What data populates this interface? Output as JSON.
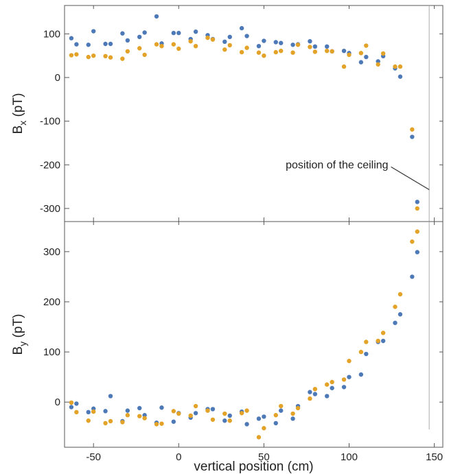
{
  "chart_data": {
    "type": "scatter",
    "xlabel": "vertical position (cm)",
    "xlim": [
      -67,
      155
    ],
    "xticks": [
      -50,
      0,
      50,
      100,
      150
    ],
    "colors": {
      "series_a": "#4e79b7",
      "series_b": "#e3a228"
    },
    "marker_line_x": 147,
    "panels": [
      {
        "id": "bx",
        "ylabel_main": "B",
        "ylabel_sub": "x",
        "ylabel_unit": " (pT)",
        "ylim": [
          -330,
          165
        ],
        "yticks": [
          100,
          0,
          -100,
          -200,
          -300
        ],
        "annotation": {
          "text": "position of the ceiling",
          "x": 123,
          "y": -200,
          "arrow_to": [
            147,
            -257
          ]
        },
        "series": [
          {
            "color": "#4e79b7",
            "points": [
              [
                -63,
                90
              ],
              [
                -60,
                76
              ],
              [
                -53,
                75
              ],
              [
                -50,
                106
              ],
              [
                -43,
                77
              ],
              [
                -40,
                77
              ],
              [
                -33,
                101
              ],
              [
                -30,
                85
              ],
              [
                -23,
                93
              ],
              [
                -20,
                103
              ],
              [
                -13,
                140
              ],
              [
                -10,
                78
              ],
              [
                -3,
                102
              ],
              [
                0,
                102
              ],
              [
                7,
                88
              ],
              [
                10,
                105
              ],
              [
                17,
                97
              ],
              [
                20,
                88
              ],
              [
                27,
                82
              ],
              [
                30,
                93
              ],
              [
                37,
                113
              ],
              [
                40,
                95
              ],
              [
                47,
                72
              ],
              [
                50,
                84
              ],
              [
                57,
                81
              ],
              [
                60,
                79
              ],
              [
                67,
                75
              ],
              [
                70,
                76
              ],
              [
                77,
                83
              ],
              [
                80,
                71
              ],
              [
                87,
                71
              ],
              [
                90,
                60
              ],
              [
                97,
                61
              ],
              [
                100,
                56
              ],
              [
                107,
                35
              ],
              [
                110,
                47
              ],
              [
                117,
                37
              ],
              [
                120,
                49
              ],
              [
                127,
                21
              ],
              [
                130,
                2
              ],
              [
                137,
                -136
              ],
              [
                140,
                -285
              ]
            ]
          },
          {
            "color": "#e3a228",
            "points": [
              [
                -63,
                51
              ],
              [
                -60,
                53
              ],
              [
                -53,
                47
              ],
              [
                -50,
                50
              ],
              [
                -43,
                49
              ],
              [
                -40,
                46
              ],
              [
                -33,
                43
              ],
              [
                -30,
                60
              ],
              [
                -23,
                67
              ],
              [
                -20,
                52
              ],
              [
                -13,
                76
              ],
              [
                -10,
                72
              ],
              [
                -3,
                76
              ],
              [
                0,
                66
              ],
              [
                7,
                83
              ],
              [
                10,
                72
              ],
              [
                17,
                91
              ],
              [
                20,
                87
              ],
              [
                27,
                64
              ],
              [
                30,
                74
              ],
              [
                37,
                58
              ],
              [
                40,
                68
              ],
              [
                47,
                57
              ],
              [
                50,
                50
              ],
              [
                57,
                58
              ],
              [
                60,
                61
              ],
              [
                67,
                57
              ],
              [
                70,
                75
              ],
              [
                77,
                70
              ],
              [
                80,
                59
              ],
              [
                87,
                61
              ],
              [
                90,
                60
              ],
              [
                97,
                25
              ],
              [
                100,
                52
              ],
              [
                107,
                56
              ],
              [
                110,
                73
              ],
              [
                117,
                30
              ],
              [
                120,
                55
              ],
              [
                127,
                25
              ],
              [
                130,
                25
              ],
              [
                137,
                -119
              ],
              [
                140,
                -300
              ]
            ]
          }
        ]
      },
      {
        "id": "by",
        "ylabel_main": "B",
        "ylabel_sub": "y",
        "ylabel_unit": " (pT)",
        "ylim": [
          -90,
          360
        ],
        "yticks": [
          300,
          200,
          100,
          0
        ],
        "series": [
          {
            "color": "#4e79b7",
            "points": [
              [
                -63,
                -10
              ],
              [
                -60,
                -3
              ],
              [
                -53,
                -20
              ],
              [
                -50,
                -13
              ],
              [
                -43,
                -18
              ],
              [
                -40,
                12
              ],
              [
                -33,
                -38
              ],
              [
                -30,
                -17
              ],
              [
                -23,
                -12
              ],
              [
                -20,
                -26
              ],
              [
                -13,
                -41
              ],
              [
                -10,
                -11
              ],
              [
                -3,
                -39
              ],
              [
                0,
                -22
              ],
              [
                7,
                -31
              ],
              [
                10,
                -22
              ],
              [
                17,
                -14
              ],
              [
                20,
                -14
              ],
              [
                27,
                -37
              ],
              [
                30,
                -27
              ],
              [
                37,
                -19
              ],
              [
                40,
                -44
              ],
              [
                47,
                -33
              ],
              [
                50,
                -29
              ],
              [
                57,
                -42
              ],
              [
                60,
                -17
              ],
              [
                67,
                -33
              ],
              [
                70,
                -8
              ],
              [
                77,
                20
              ],
              [
                80,
                16
              ],
              [
                87,
                12
              ],
              [
                90,
                28
              ],
              [
                97,
                30
              ],
              [
                100,
                50
              ],
              [
                107,
                55
              ],
              [
                110,
                96
              ],
              [
                117,
                120
              ],
              [
                120,
                122
              ],
              [
                127,
                158
              ],
              [
                130,
                175
              ],
              [
                137,
                250
              ],
              [
                140,
                299
              ]
            ]
          },
          {
            "color": "#e3a228",
            "points": [
              [
                -63,
                -1
              ],
              [
                -60,
                -20
              ],
              [
                -53,
                -37
              ],
              [
                -50,
                -19
              ],
              [
                -43,
                -42
              ],
              [
                -40,
                -38
              ],
              [
                -33,
                -40
              ],
              [
                -30,
                -26
              ],
              [
                -23,
                -28
              ],
              [
                -20,
                -32
              ],
              [
                -13,
                -44
              ],
              [
                -10,
                -43
              ],
              [
                -3,
                -18
              ],
              [
                0,
                -23
              ],
              [
                7,
                -27
              ],
              [
                10,
                -8
              ],
              [
                17,
                -17
              ],
              [
                20,
                -35
              ],
              [
                27,
                -23
              ],
              [
                30,
                -37
              ],
              [
                37,
                -22
              ],
              [
                40,
                -17
              ],
              [
                47,
                -70
              ],
              [
                50,
                -52
              ],
              [
                57,
                -26
              ],
              [
                60,
                -8
              ],
              [
                67,
                -23
              ],
              [
                70,
                -12
              ],
              [
                77,
                7
              ],
              [
                80,
                26
              ],
              [
                87,
                35
              ],
              [
                90,
                40
              ],
              [
                97,
                45
              ],
              [
                100,
                82
              ],
              [
                107,
                100
              ],
              [
                110,
                120
              ],
              [
                117,
                122
              ],
              [
                120,
                138
              ],
              [
                127,
                190
              ],
              [
                130,
                215
              ],
              [
                137,
                320
              ],
              [
                140,
                340
              ]
            ]
          }
        ]
      }
    ]
  }
}
